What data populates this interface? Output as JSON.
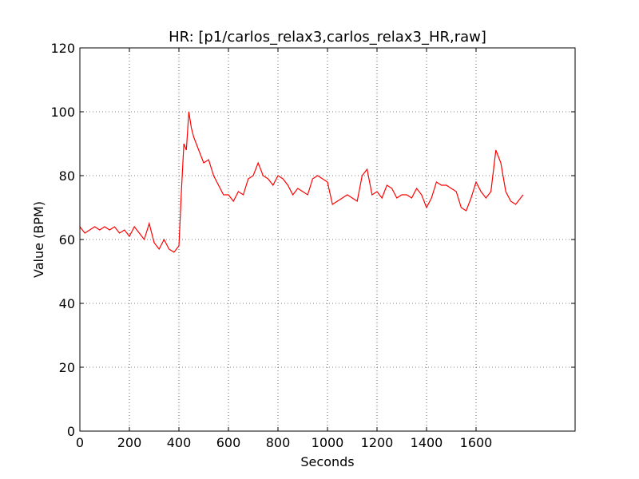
{
  "chart_data": {
    "type": "line",
    "title": "HR: [p1/carlos_relax3,carlos_relax3_HR,raw]",
    "xlabel": "Seconds",
    "ylabel": "Value (BPM)",
    "xlim": [
      0,
      2000
    ],
    "ylim": [
      0,
      120
    ],
    "xticks": [
      0,
      200,
      400,
      600,
      800,
      1000,
      1200,
      1400,
      1600
    ],
    "yticks": [
      0,
      20,
      40,
      60,
      80,
      100,
      120
    ],
    "grid": true,
    "x": [
      0,
      20,
      40,
      60,
      80,
      100,
      120,
      140,
      160,
      180,
      200,
      220,
      240,
      260,
      280,
      300,
      320,
      340,
      360,
      380,
      400,
      410,
      420,
      430,
      440,
      450,
      460,
      480,
      500,
      520,
      540,
      560,
      580,
      600,
      620,
      640,
      660,
      680,
      700,
      720,
      740,
      760,
      780,
      800,
      820,
      840,
      860,
      880,
      900,
      920,
      940,
      960,
      980,
      1000,
      1020,
      1040,
      1060,
      1080,
      1100,
      1120,
      1140,
      1160,
      1180,
      1200,
      1220,
      1240,
      1260,
      1280,
      1300,
      1320,
      1340,
      1360,
      1380,
      1400,
      1420,
      1440,
      1460,
      1480,
      1500,
      1520,
      1540,
      1560,
      1580,
      1600,
      1620,
      1640,
      1660,
      1680,
      1700,
      1720,
      1740,
      1760,
      1780,
      1790
    ],
    "series": [
      {
        "name": "HR",
        "color": "#ff0000",
        "values": [
          64,
          62,
          63,
          64,
          63,
          64,
          63,
          64,
          62,
          63,
          61,
          64,
          62,
          60,
          65,
          59,
          57,
          60,
          57,
          56,
          58,
          75,
          90,
          88,
          100,
          95,
          92,
          88,
          84,
          85,
          80,
          77,
          74,
          74,
          72,
          75,
          74,
          79,
          80,
          84,
          80,
          79,
          77,
          80,
          79,
          77,
          74,
          76,
          75,
          74,
          79,
          80,
          79,
          78,
          71,
          72,
          73,
          74,
          73,
          72,
          80,
          82,
          74,
          75,
          73,
          77,
          76,
          73,
          74,
          74,
          73,
          76,
          74,
          70,
          73,
          78,
          77,
          77,
          76,
          75,
          70,
          69,
          73,
          78,
          75,
          73,
          75,
          88,
          84,
          75,
          72,
          71,
          73,
          74
        ]
      }
    ]
  }
}
